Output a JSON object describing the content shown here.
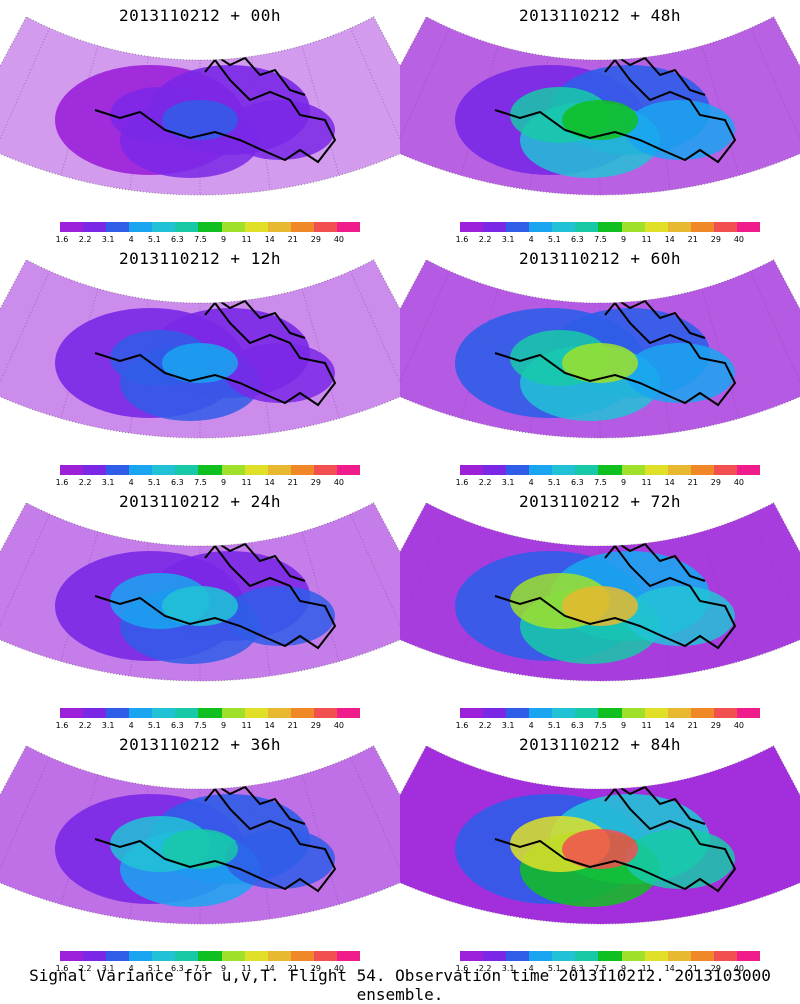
{
  "panels": [
    {
      "title": "2013110212 + 00h"
    },
    {
      "title": "2013110212 + 48h"
    },
    {
      "title": "2013110212 + 12h"
    },
    {
      "title": "2013110212 + 60h"
    },
    {
      "title": "2013110212 + 24h"
    },
    {
      "title": "2013110212 + 72h"
    },
    {
      "title": "2013110212 + 36h"
    },
    {
      "title": "2013110212 + 84h"
    }
  ],
  "colorbar": {
    "labels": [
      "1.6",
      "2.2",
      "3.1",
      "4",
      "5.1",
      "6.3",
      "7.5",
      "9",
      "11",
      "14",
      "21",
      "29",
      "40"
    ],
    "colors": [
      "#9b20d8",
      "#7a28e6",
      "#2f5de8",
      "#1aa5f0",
      "#22c2d6",
      "#18c9a8",
      "#10c020",
      "#9ee02a",
      "#e0e028",
      "#e8b830",
      "#f08828",
      "#f25050",
      "#f01c8c"
    ]
  },
  "caption": "Signal Variance for u,v,T. Flight 54. Observation time 2013110212. 2013103000 ensemble."
}
